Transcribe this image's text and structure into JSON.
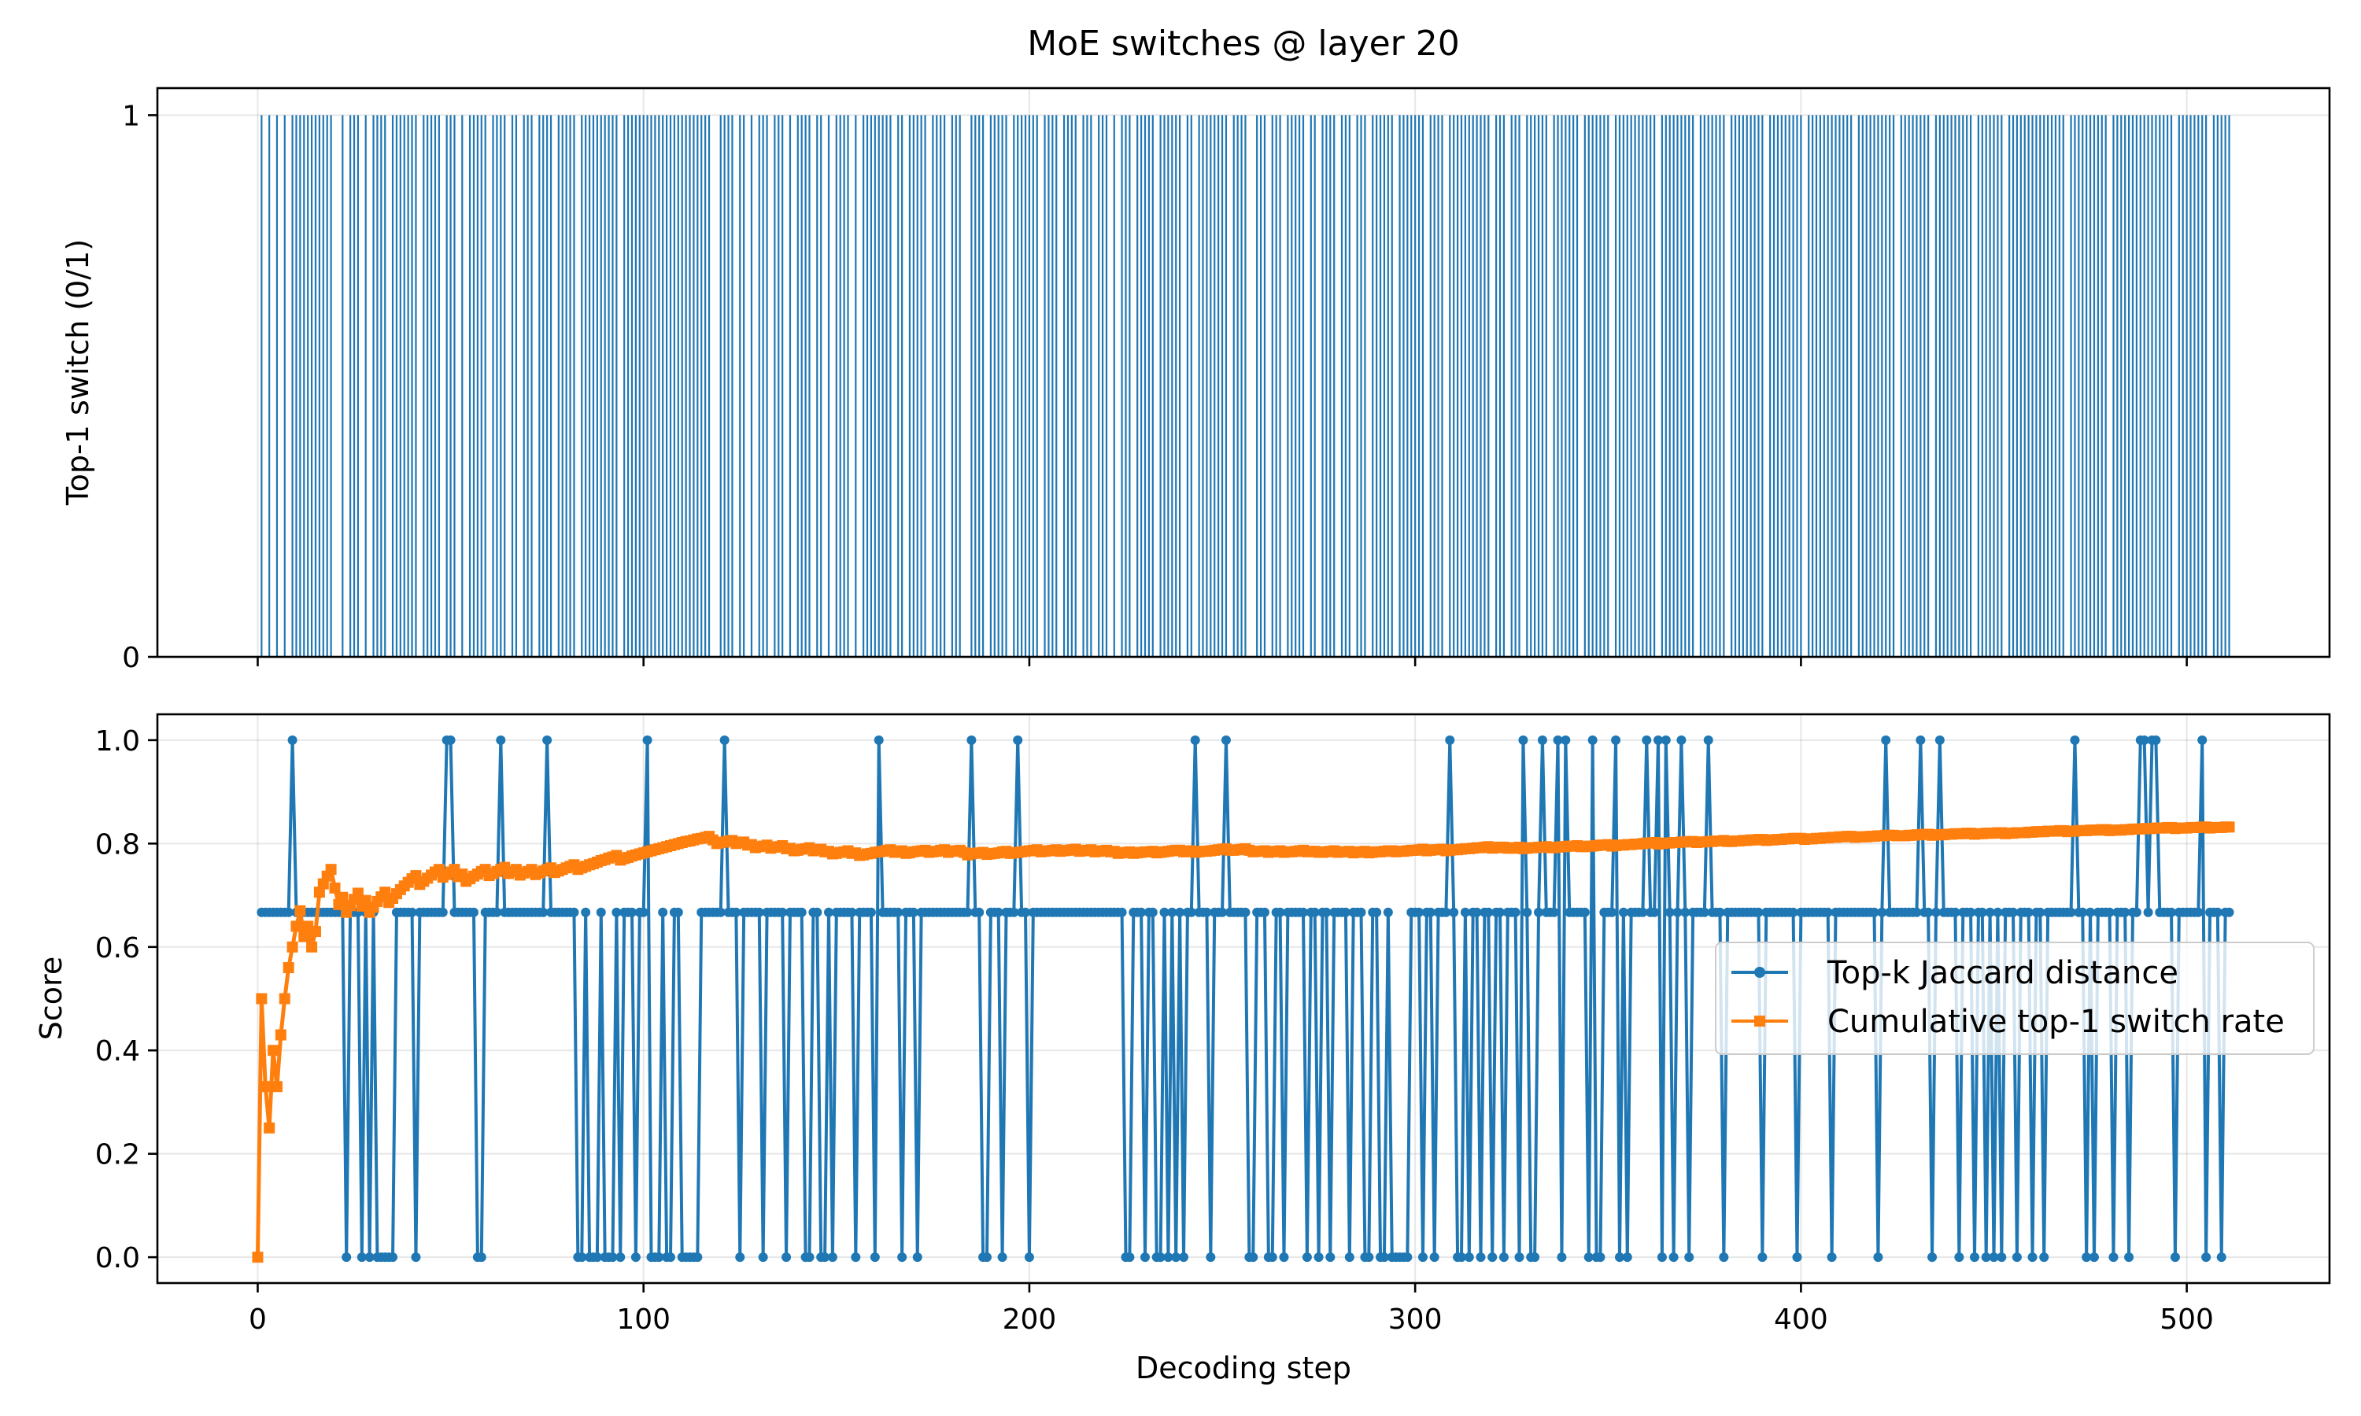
{
  "figure_title": "MoE switches @ layer 20",
  "colors": {
    "jaccard": "#1f77b4",
    "cumulative": "#ff7f0e",
    "switch": "#1f77b4"
  },
  "chart_data": [
    {
      "type": "bar",
      "title": "MoE switches @ layer 20",
      "xlabel": "",
      "ylabel": "Top-1 switch (0/1)",
      "xlim": [
        -26,
        537
      ],
      "ylim": [
        0,
        1.05
      ],
      "yticks": [
        0,
        1
      ],
      "xticks": [
        0,
        100,
        200,
        300,
        400,
        500
      ],
      "x_tick_labels_visible": false,
      "grid": true,
      "series": [
        {
          "values_by_step_note": "",
          "steps": [
            1,
            3,
            5,
            7,
            9,
            10,
            11,
            12,
            13,
            14,
            15,
            16,
            17,
            18,
            19,
            22,
            24,
            25,
            26,
            28,
            30,
            31,
            32,
            33,
            35,
            36,
            37,
            38,
            39,
            40,
            41,
            43,
            44,
            45,
            46,
            47,
            49,
            50,
            51,
            53,
            55,
            56,
            57,
            58,
            59,
            61,
            62,
            63,
            64,
            66,
            67,
            69,
            70,
            71,
            73,
            74,
            75,
            76,
            78,
            79,
            80,
            81,
            82,
            84,
            85,
            86,
            87,
            88,
            89,
            90,
            91,
            92,
            93,
            95,
            96,
            97,
            98,
            99,
            100,
            101,
            102,
            103,
            104,
            105,
            106,
            107,
            108,
            109,
            110,
            111,
            112,
            113,
            114,
            115,
            116,
            117,
            120,
            121,
            122,
            123,
            125,
            126,
            128,
            130,
            131,
            132,
            134,
            135,
            136,
            138,
            140,
            141,
            142,
            143,
            145,
            146,
            148,
            150,
            151,
            152,
            153,
            155,
            157,
            158,
            159,
            160,
            161,
            162,
            163,
            164,
            166,
            167,
            169,
            170,
            171,
            172,
            173,
            175,
            176,
            177,
            178,
            180,
            181,
            182,
            185,
            186,
            187,
            188,
            190,
            191,
            192,
            193,
            194,
            196,
            197,
            198,
            199,
            200,
            201,
            202,
            204,
            205,
            206,
            207,
            209,
            210,
            211,
            212,
            214,
            215,
            216,
            218,
            219,
            220,
            222,
            224,
            225,
            226,
            228,
            229,
            230,
            231,
            232,
            234,
            235,
            236,
            237,
            238,
            239,
            241,
            242,
            244,
            245,
            246,
            247,
            248,
            249,
            250,
            251,
            253,
            254,
            255,
            256,
            259,
            260,
            261,
            263,
            264,
            265,
            267,
            268,
            269,
            270,
            271,
            273,
            274,
            276,
            277,
            278,
            279,
            281,
            282,
            283,
            285,
            286,
            287,
            289,
            290,
            291,
            292,
            293,
            294,
            296,
            297,
            298,
            299,
            300,
            301,
            302,
            304,
            305,
            306,
            307,
            309,
            310,
            311,
            312,
            313,
            314,
            315,
            316,
            317,
            318,
            319,
            321,
            322,
            323,
            325,
            326,
            327,
            329,
            330,
            331,
            332,
            333,
            334,
            336,
            337,
            338,
            339,
            340,
            341,
            342,
            344,
            345,
            346,
            347,
            348,
            349,
            350,
            352,
            353,
            354,
            355,
            356,
            357,
            358,
            359,
            360,
            361,
            362,
            364,
            365,
            366,
            367,
            368,
            369,
            370,
            371,
            372,
            374,
            375,
            376,
            377,
            378,
            379,
            380,
            382,
            383,
            384,
            385,
            386,
            387,
            388,
            389,
            390,
            392,
            393,
            394,
            395,
            396,
            397,
            398,
            399,
            400,
            402,
            403,
            404,
            405,
            406,
            407,
            408,
            409,
            410,
            411,
            412,
            413,
            415,
            416,
            417,
            418,
            419,
            420,
            421,
            422,
            423,
            424,
            426,
            427,
            428,
            429,
            430,
            431,
            432,
            433,
            435,
            436,
            437,
            438,
            439,
            440,
            441,
            442,
            443,
            444,
            446,
            447,
            448,
            449,
            450,
            451,
            452,
            454,
            455,
            456,
            457,
            458,
            459,
            460,
            461,
            462,
            463,
            464,
            465,
            466,
            467,
            468,
            470,
            471,
            472,
            473,
            474,
            475,
            476,
            477,
            478,
            479,
            481,
            482,
            483,
            484,
            485,
            486,
            487,
            488,
            489,
            490,
            491,
            492,
            493,
            494,
            495,
            496,
            498,
            499,
            500,
            501,
            502,
            503,
            504,
            505,
            507,
            508,
            509,
            510,
            511
          ],
          "value": 1
        }
      ]
    },
    {
      "type": "line",
      "title": "",
      "xlabel": "Decoding step",
      "ylabel": "Score",
      "xlim": [
        -26,
        537
      ],
      "ylim": [
        -0.05,
        1.05
      ],
      "xticks": [
        0,
        100,
        200,
        300,
        400,
        500
      ],
      "yticks": [
        0.0,
        0.2,
        0.4,
        0.6,
        0.8,
        1.0
      ],
      "ytick_labels": [
        "0.0",
        "0.2",
        "0.4",
        "0.6",
        "0.8",
        "1.0"
      ],
      "grid": true,
      "legend": "center-right",
      "series": [
        {
          "name": "Top-k Jaccard distance",
          "marker": "circle",
          "x_start": 1,
          "values": []
        },
        {
          "name": "Cumulative top-1 switch rate",
          "marker": "square",
          "x_start": 0,
          "values": []
        }
      ]
    }
  ]
}
